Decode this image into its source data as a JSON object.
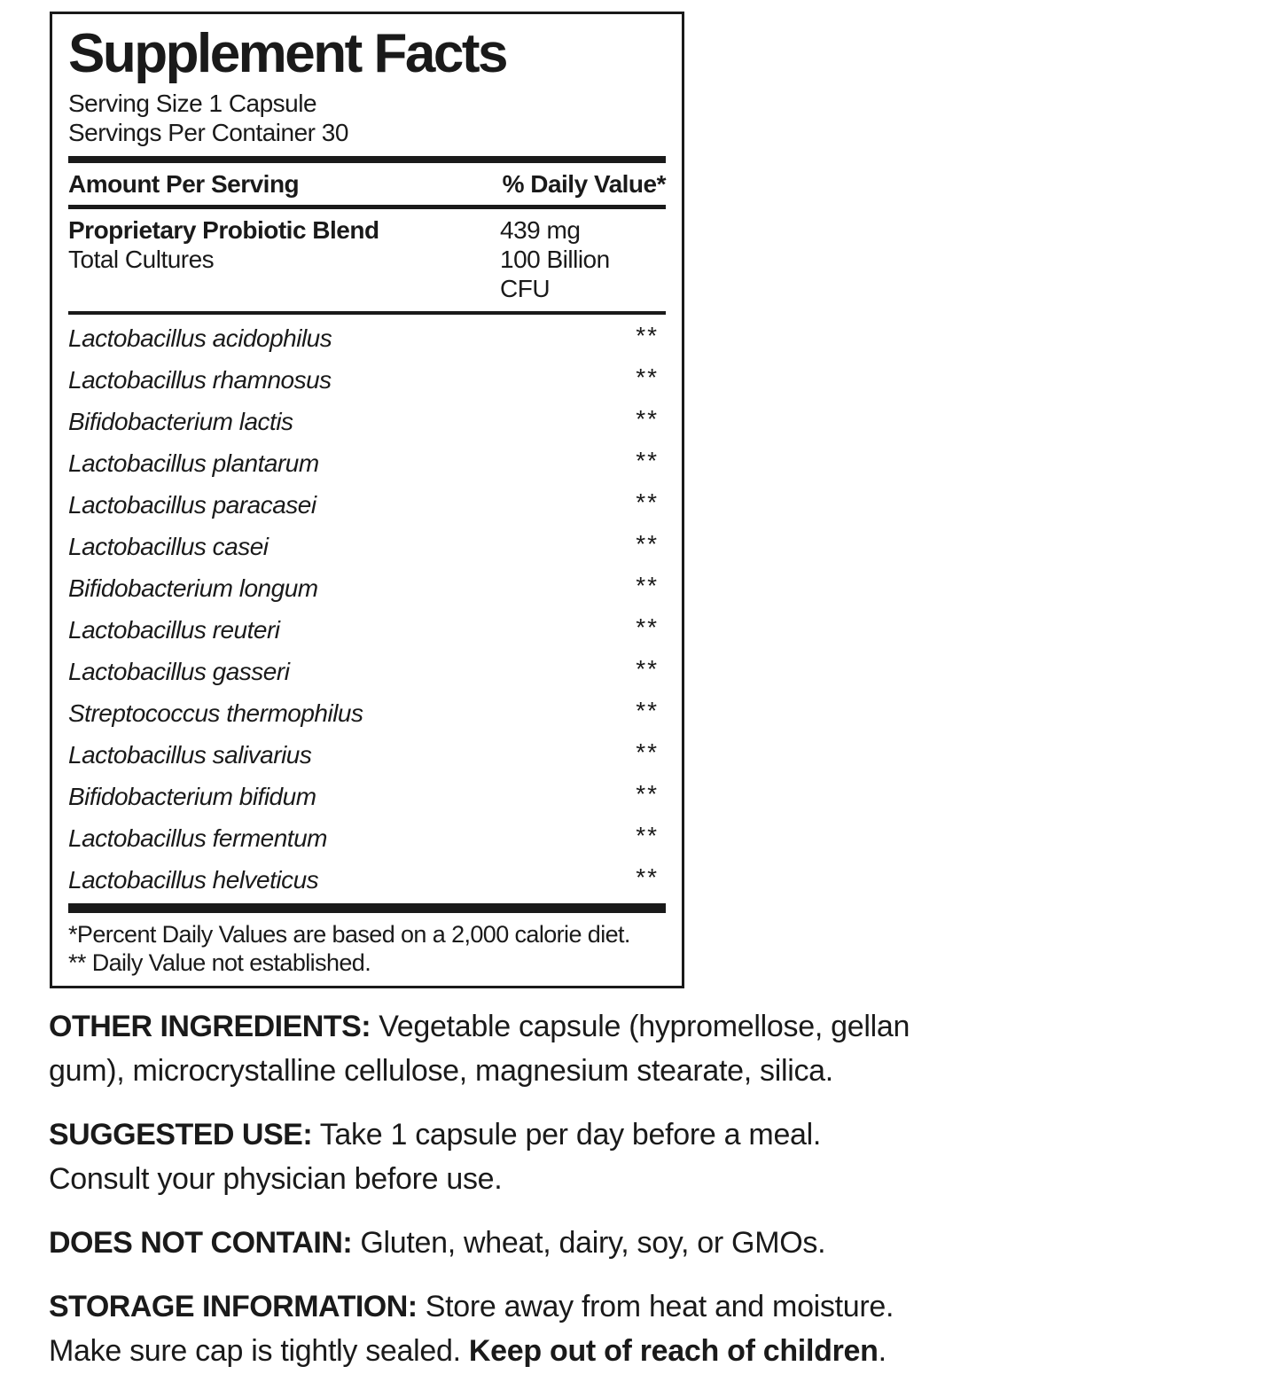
{
  "colors": {
    "ink": "#1a1a1a",
    "background": "#ffffff"
  },
  "panel": {
    "title": "Supplement Facts",
    "serving_size": "Serving Size 1 Capsule",
    "servings_per_container": "Servings Per Container 30",
    "columns": {
      "left": "Amount Per Serving",
      "right": "% Daily Value*"
    },
    "blend": {
      "name": "Proprietary Probiotic Blend",
      "amount": "439 mg",
      "sub_name": "Total Cultures",
      "sub_amount": "100 Billion CFU"
    },
    "strains": [
      {
        "name": "Lactobacillus acidophilus",
        "dv": "**"
      },
      {
        "name": "Lactobacillus rhamnosus",
        "dv": "**"
      },
      {
        "name": "Bifidobacterium lactis",
        "dv": "**"
      },
      {
        "name": "Lactobacillus plantarum",
        "dv": "**"
      },
      {
        "name": "Lactobacillus paracasei",
        "dv": "**"
      },
      {
        "name": "Lactobacillus casei",
        "dv": "**"
      },
      {
        "name": "Bifidobacterium longum",
        "dv": "**"
      },
      {
        "name": "Lactobacillus reuteri",
        "dv": "**"
      },
      {
        "name": "Lactobacillus gasseri",
        "dv": "**"
      },
      {
        "name": "Streptococcus thermophilus",
        "dv": "**"
      },
      {
        "name": "Lactobacillus salivarius",
        "dv": "**"
      },
      {
        "name": "Bifidobacterium bifidum",
        "dv": "**"
      },
      {
        "name": "Lactobacillus fermentum",
        "dv": "**"
      },
      {
        "name": "Lactobacillus helveticus",
        "dv": "**"
      }
    ],
    "footnotes": [
      "*Percent Daily Values are based on a 2,000 calorie diet.",
      "** Daily Value not established."
    ]
  },
  "sections": {
    "other_ingredients": {
      "label": "OTHER INGREDIENTS:",
      "text": " Vegetable capsule (hypromellose, gellan\ngum), microcrystalline cellulose, magnesium stearate, silica."
    },
    "suggested_use": {
      "label": "SUGGESTED USE:",
      "text": " Take 1 capsule per day before a meal.\nConsult your physician before use."
    },
    "does_not_contain": {
      "label": "DOES NOT CONTAIN:",
      "text": " Gluten, wheat, dairy, soy, or GMOs."
    },
    "storage_information": {
      "label": "STORAGE INFORMATION:",
      "text": " Store away from heat and moisture.\nMake sure cap is tightly sealed. ",
      "bold_text": "Keep out of reach of children",
      "tail": "."
    }
  }
}
